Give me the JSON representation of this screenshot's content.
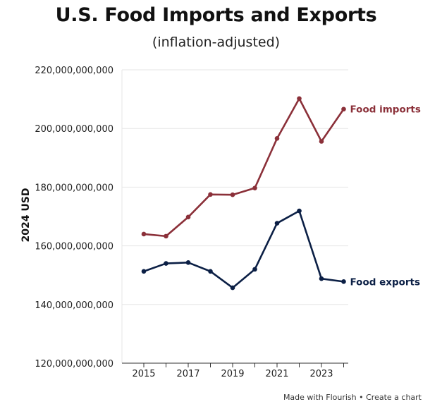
{
  "chart_data": {
    "type": "line",
    "title": "U.S. Food Imports and Exports",
    "subtitle": "(inflation-adjusted)",
    "xlabel": "",
    "ylabel": "2024 USD",
    "x": [
      2015,
      2016,
      2017,
      2018,
      2019,
      2020,
      2021,
      2022,
      2023,
      2024
    ],
    "xticks": [
      "2015",
      "2017",
      "2019",
      "2021",
      "2023"
    ],
    "ylim": [
      120000000000,
      220000000000
    ],
    "yticks": [
      "120,000,000,000",
      "140,000,000,000",
      "160,000,000,000",
      "180,000,000,000",
      "200,000,000,000",
      "220,000,000,000"
    ],
    "series": [
      {
        "name": "Food imports",
        "color": "#8b3039",
        "values": [
          164000000000,
          163300000000,
          169800000000,
          177500000000,
          177400000000,
          179700000000,
          196600000000,
          210200000000,
          195600000000,
          206600000000
        ]
      },
      {
        "name": "Food exports",
        "color": "#0b1f45",
        "values": [
          151300000000,
          154000000000,
          154300000000,
          151300000000,
          145700000000,
          152000000000,
          167700000000,
          171900000000,
          148800000000,
          147800000000
        ]
      }
    ]
  },
  "footer": {
    "made_with": "Made with Flourish",
    "separator": " • ",
    "create": "Create a chart"
  }
}
